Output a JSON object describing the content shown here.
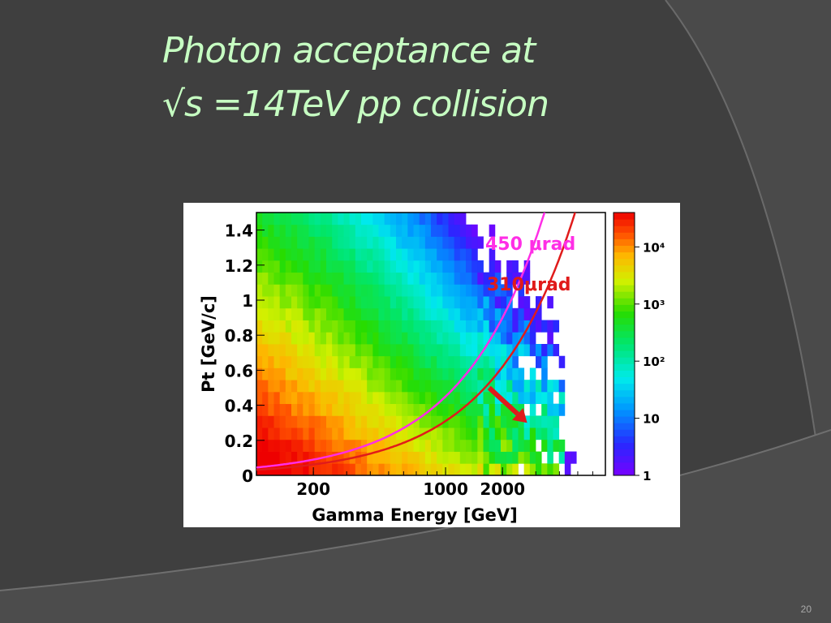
{
  "slide": {
    "title_line1": "Photon acceptance at",
    "title_line2": "√s =14TeV pp collision",
    "number": "20"
  },
  "chart_data": {
    "type": "heatmap",
    "title": "",
    "xlabel": "Gamma Energy [GeV]",
    "ylabel": "Pt [GeV/c]",
    "x_scale": "log",
    "xlim": [
      100,
      7000
    ],
    "ylim": [
      0,
      1.5
    ],
    "x_ticks": [
      200,
      1000,
      2000
    ],
    "x_tick_labels": [
      "200",
      "1000",
      "2000"
    ],
    "y_ticks": [
      0,
      0.2,
      0.4,
      0.6,
      0.8,
      1,
      1.2,
      1.4
    ],
    "y_tick_labels": [
      "0",
      "0.2",
      "0.4",
      "0.6",
      "0.8",
      "1",
      "1.2",
      "1.4"
    ],
    "colorbar": {
      "scale": "log",
      "range": [
        1,
        40000
      ],
      "ticks": [
        1,
        10,
        100,
        1000,
        10000
      ],
      "tick_labels": [
        "1",
        "10",
        "10²",
        "10³",
        "10⁴"
      ]
    },
    "distribution_note_values": {
      "density_decreases_with": "energy and pt",
      "max_cell_count": 40000
    },
    "curves": [
      {
        "name": "450 μrad",
        "color": "#ff2ee6",
        "angle_urad": 450
      },
      {
        "name": "310μrad",
        "color": "#e01b1b",
        "angle_urad": 310
      }
    ],
    "arrow": {
      "color": "#e01b1b",
      "from": [
        1700,
        0.5
      ],
      "to": [
        2700,
        0.3
      ]
    },
    "grid": false,
    "legend": "none"
  }
}
